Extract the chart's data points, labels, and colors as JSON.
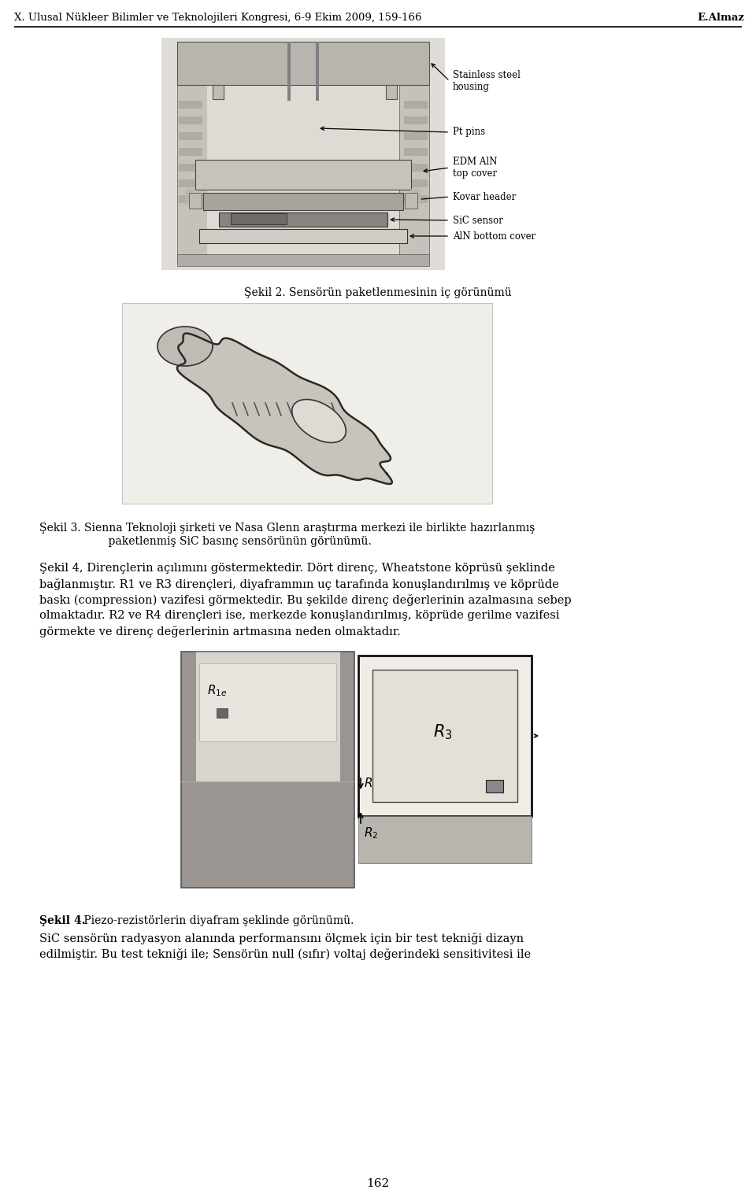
{
  "page_width": 9.6,
  "page_height": 15.21,
  "bg_color": "#ffffff",
  "header_text": "X. Ulusal Nükleer Bilimler ve Teknolojileri Kongresi, 6-9 Ekim 2009, 159-166",
  "header_right": "E.Almaz",
  "header_fontsize": 9.5,
  "figure1_caption": "Şekil 2. Sensörün paketlenmesinin iç görünümü",
  "figure1_caption_fontsize": 10,
  "figure2_caption_line1": "Şekil 3. Sienna Teknoloji şirketi ve Nasa Glenn araştırma merkezi ile birlikte hazırlanmış",
  "figure2_caption_line2": "                    paketlenmiş SiC basınç sensörünün görünümü.",
  "figure2_caption_fontsize": 10,
  "body_text1_lines": [
    "Şekil 4, Dirençlerin açılımını göstermektedir. Dört direnç, Wheatstone köprüsü şeklinde",
    "bağlanmıştır. R1 ve R3 dirençleri, diyaframmın uç tarafında konuşlandırılmış ve köprüde",
    "baskı (compression) vazifesi görmektedir. Bu şekilde direnç değerlerinin azalmasına sebep",
    "olmaktadır. R2 ve R4 dirençleri ise, merkezde konuşlandırılmış, köprüde gerilme vazifesi",
    "görmekte ve direnç değerlerinin artmasına neden olmaktadır."
  ],
  "body_text1_fontsize": 10.5,
  "figure3_caption_bold": "Şekil 4.",
  "figure3_caption_rest": " Piezo-rezistörlerin diyafram şeklinde görünümü.",
  "figure3_caption_fontsize": 10,
  "body_text2_lines": [
    "SiC sensörün radyasyon alanında performansını ölçmek için bir test tekniği dizayn",
    "edilmiştir. Bu test tekniği ile; Sensörün null (sıfır) voltaj değerindeki sensitivitesi ile"
  ],
  "body_text2_fontsize": 10.5,
  "page_number": "162",
  "page_number_fontsize": 11,
  "text_color": "#000000",
  "label_stainless": "Stainless steel\nhousing",
  "label_pt_pins": "Pt pins",
  "label_edm": "EDM AlN\ntop cover",
  "label_kovar": "Kovar header",
  "label_sic": "SiC sensor",
  "label_aln": "AlN bottom cover",
  "label_fontsize": 8.5
}
